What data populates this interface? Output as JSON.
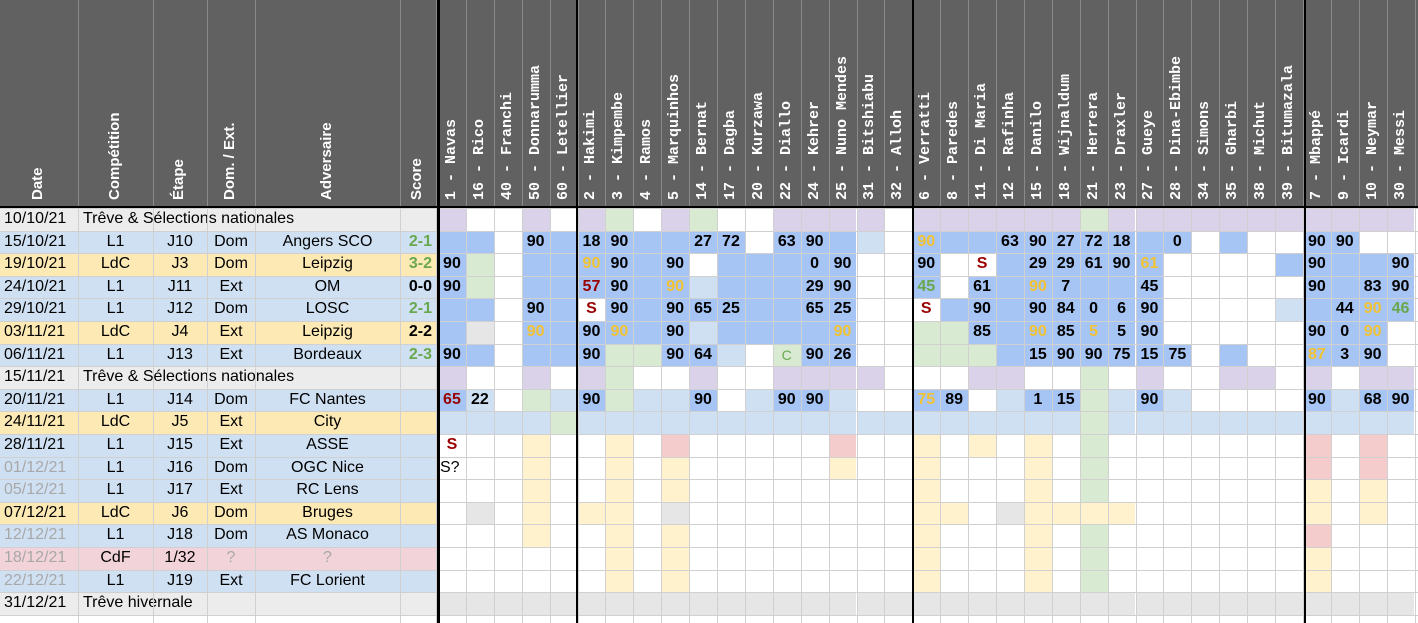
{
  "colors": {
    "header_bg": "#616161",
    "row_l1": "#cfe0f3",
    "row_ldc": "#fde9b4",
    "row_treve": "#ececec",
    "row_cdf": "#f3d3da",
    "played": "#a6c4f4",
    "light": "#cfe0f3",
    "green": "#d9ead3",
    "purple": "#d9d2e9",
    "grey": "#e6e6e6",
    "yellow": "#fff2cc",
    "pink": "#f4cccc",
    "text_green": "#6aa84f",
    "text_yellow": "#f1c232",
    "text_red": "#990000",
    "text_grey": "#a8a8a8"
  },
  "headers": [
    "Date",
    "Compétition",
    "Étape",
    "Dom. / Ext.",
    "Adversaire",
    "Score"
  ],
  "players": [
    "1 - Navas",
    "16 - Rico",
    "40 - Franchi",
    "50 - Donnarumma",
    "60 - Letellier",
    "2 - Hakimi",
    "3 - Kimpembe",
    "4 - Ramos",
    "5 - Marquinhos",
    "14 - Bernat",
    "17 - Dagba",
    "20 - Kurzawa",
    "22 - Diallo",
    "24 - Kehrer",
    "25 - Nuno Mendes",
    "31 - Bitshiabu",
    "32 - Alloh",
    "6 - Verratti",
    "8 - Paredes",
    "11 - Di Maria",
    "12 - Rafinha",
    "15 - Danilo",
    "18 - Wijnaldum",
    "21 - Herrera",
    "23 - Draxler",
    "27 - Gueye",
    "28 - Dina-Ebimbe",
    "34 - Simons",
    "35 - Gharbi",
    "38 - Michut",
    "39 - Bitumazala",
    "7 - Mbappé",
    "9 - Icardi",
    "10 - Neymar",
    "30 - Messi"
  ],
  "rows": [
    {
      "date": "10/10/21",
      "note": "Trêve & Sélections nationales",
      "kind": "treve"
    },
    {
      "date": "15/10/21",
      "comp": "L1",
      "etape": "J10",
      "dom": "Dom",
      "adv": "Angers SCO",
      "score": "2-1",
      "score_color": "green",
      "kind": "l1"
    },
    {
      "date": "19/10/21",
      "comp": "LdC",
      "etape": "J3",
      "dom": "Dom",
      "adv": "Leipzig",
      "score": "3-2",
      "score_color": "green",
      "kind": "ldc"
    },
    {
      "date": "24/10/21",
      "comp": "L1",
      "etape": "J11",
      "dom": "Ext",
      "adv": "OM",
      "score": "0-0",
      "score_color": "black",
      "kind": "l1"
    },
    {
      "date": "29/10/21",
      "comp": "L1",
      "etape": "J12",
      "dom": "Dom",
      "adv": "LOSC",
      "score": "2-1",
      "score_color": "green",
      "kind": "l1"
    },
    {
      "date": "03/11/21",
      "comp": "LdC",
      "etape": "J4",
      "dom": "Ext",
      "adv": "Leipzig",
      "score": "2-2",
      "score_color": "black",
      "kind": "ldc"
    },
    {
      "date": "06/11/21",
      "comp": "L1",
      "etape": "J13",
      "dom": "Ext",
      "adv": "Bordeaux",
      "score": "2-3",
      "score_color": "green",
      "kind": "l1"
    },
    {
      "date": "15/11/21",
      "note": "Trêve & Sélections nationales",
      "kind": "treve"
    },
    {
      "date": "20/11/21",
      "comp": "L1",
      "etape": "J14",
      "dom": "Dom",
      "adv": "FC Nantes",
      "score": "",
      "kind": "l1"
    },
    {
      "date": "24/11/21",
      "comp": "LdC",
      "etape": "J5",
      "dom": "Ext",
      "adv": "City",
      "score": "",
      "kind": "ldc"
    },
    {
      "date": "28/11/21",
      "comp": "L1",
      "etape": "J15",
      "dom": "Ext",
      "adv": "ASSE",
      "score": "",
      "kind": "l1"
    },
    {
      "date": "01/12/21",
      "comp": "L1",
      "etape": "J16",
      "dom": "Dom",
      "adv": "OGC Nice",
      "score": "",
      "kind": "l1",
      "date_grey": true
    },
    {
      "date": "05/12/21",
      "comp": "L1",
      "etape": "J17",
      "dom": "Ext",
      "adv": "RC Lens",
      "score": "",
      "kind": "l1",
      "date_grey": true
    },
    {
      "date": "07/12/21",
      "comp": "LdC",
      "etape": "J6",
      "dom": "Dom",
      "adv": "Bruges",
      "score": "",
      "kind": "ldc"
    },
    {
      "date": "12/12/21",
      "comp": "L1",
      "etape": "J18",
      "dom": "Dom",
      "adv": "AS Monaco",
      "score": "",
      "kind": "l1",
      "date_grey": true
    },
    {
      "date": "18/12/21",
      "comp": "CdF",
      "etape": "1/32",
      "dom": "?",
      "adv": "?",
      "score": "",
      "kind": "cdf",
      "date_grey": true,
      "dom_grey": true,
      "adv_grey": true
    },
    {
      "date": "22/12/21",
      "comp": "L1",
      "etape": "J19",
      "dom": "Ext",
      "adv": "FC Lorient",
      "score": "",
      "kind": "l1",
      "date_grey": true
    },
    {
      "date": "31/12/21",
      "note": "Trêve hivernale",
      "kind": "treve"
    }
  ],
  "cells": {
    "0": {
      "0": "purple",
      "3": "purple",
      "5": "purple",
      "6": "green",
      "8": "purple",
      "9": "green",
      "12": "purple",
      "13": "purple",
      "14": "purple",
      "15": "purple",
      "17": "purple",
      "18": "purple",
      "19": "purple",
      "20": "purple",
      "21": "purple",
      "22": "purple",
      "23": "green",
      "24": "purple",
      "25": "purple",
      "26": "purple",
      "27": "purple",
      "28": "purple",
      "29": "purple",
      "30": "purple",
      "31": "purple",
      "32": "purple",
      "33": "purple",
      "34": "purple"
    },
    "1": {
      "0": "played",
      "1": "played",
      "3": [
        "played",
        "90"
      ],
      "4": "played",
      "5": [
        "played",
        "18"
      ],
      "6": [
        "played",
        "90"
      ],
      "7": "played",
      "8": "played",
      "9": [
        "played",
        "27"
      ],
      "10": [
        "played",
        "72"
      ],
      "12": [
        "played",
        "63"
      ],
      "13": [
        "played",
        "90"
      ],
      "14": "played",
      "15": "light",
      "17": [
        "played",
        "90",
        "yellow"
      ],
      "18": "played",
      "19": "played",
      "20": [
        "played",
        "63"
      ],
      "21": [
        "played",
        "90"
      ],
      "22": [
        "played",
        "27"
      ],
      "23": [
        "played",
        "72"
      ],
      "24": [
        "played",
        "18"
      ],
      "25": "played",
      "26": [
        "played",
        "0"
      ],
      "28": "played",
      "31": [
        "played",
        "90"
      ],
      "32": [
        "played",
        "90"
      ]
    },
    "2": {
      "0": [
        "played",
        "90"
      ],
      "1": "green",
      "3": "played",
      "4": "played",
      "5": [
        "played",
        "90",
        "yellow"
      ],
      "6": [
        "played",
        "90"
      ],
      "7": "played",
      "8": [
        "played",
        "90"
      ],
      "10": "played",
      "11": "played",
      "12": "played",
      "13": [
        "played",
        "0"
      ],
      "14": [
        "played",
        "90"
      ],
      "17": [
        "played",
        "90"
      ],
      "19": [
        "white",
        "S",
        "red"
      ],
      "20": "played",
      "21": [
        "played",
        "29"
      ],
      "22": [
        "played",
        "29"
      ],
      "23": [
        "played",
        "61"
      ],
      "24": [
        "played",
        "90"
      ],
      "25": [
        "played",
        "61",
        "yellow"
      ],
      "30": "played",
      "31": [
        "played",
        "90"
      ],
      "32": "played",
      "33": "played",
      "34": [
        "played",
        "90"
      ]
    },
    "3": {
      "0": [
        "played",
        "90"
      ],
      "1": "green",
      "3": "played",
      "4": "played",
      "5": [
        "played",
        "57",
        "red"
      ],
      "6": [
        "played",
        "90"
      ],
      "7": "played",
      "8": [
        "played",
        "90",
        "yellow"
      ],
      "9": "light",
      "10": "played",
      "11": "played",
      "12": "played",
      "13": [
        "played",
        "29"
      ],
      "14": [
        "played",
        "90"
      ],
      "17": [
        "played",
        "45",
        "green"
      ],
      "19": [
        "played",
        "61"
      ],
      "20": "played",
      "21": [
        "played",
        "90",
        "yellow"
      ],
      "22": [
        "played",
        "7"
      ],
      "23": "played",
      "24": "played",
      "25": [
        "played",
        "45"
      ],
      "31": [
        "played",
        "90"
      ],
      "32": "played",
      "33": [
        "played",
        "83"
      ],
      "34": [
        "played",
        "90"
      ]
    },
    "4": {
      "0": "played",
      "1": "played",
      "3": [
        "played",
        "90"
      ],
      "4": "played",
      "5": [
        "white",
        "S",
        "red"
      ],
      "6": [
        "played",
        "90"
      ],
      "7": "played",
      "8": [
        "played",
        "90"
      ],
      "9": [
        "played",
        "65"
      ],
      "10": [
        "played",
        "25"
      ],
      "11": "played",
      "12": "played",
      "13": [
        "played",
        "65"
      ],
      "14": [
        "played",
        "25"
      ],
      "17": [
        "white",
        "S",
        "red"
      ],
      "18": "played",
      "19": [
        "played",
        "90"
      ],
      "20": "played",
      "21": [
        "played",
        "90"
      ],
      "22": [
        "played",
        "84"
      ],
      "23": [
        "played",
        "0"
      ],
      "24": [
        "played",
        "6"
      ],
      "25": [
        "played",
        "90"
      ],
      "30": "light",
      "31": "played",
      "32": [
        "played",
        "44"
      ],
      "33": [
        "played",
        "90",
        "yellow"
      ],
      "34": [
        "played",
        "46",
        "green"
      ]
    },
    "5": {
      "0": "played",
      "1": "grey",
      "3": [
        "played",
        "90",
        "yellow"
      ],
      "4": "played",
      "5": [
        "played",
        "90"
      ],
      "6": [
        "played",
        "90",
        "yellow"
      ],
      "7": "played",
      "8": [
        "played",
        "90"
      ],
      "9": "light",
      "10": "played",
      "11": "played",
      "12": "played",
      "13": "played",
      "14": [
        "played",
        "90",
        "yellow"
      ],
      "17": "green",
      "18": "green",
      "19": [
        "played",
        "85"
      ],
      "20": "played",
      "21": [
        "played",
        "90",
        "yellow"
      ],
      "22": [
        "played",
        "85"
      ],
      "23": [
        "played",
        "5",
        "yellow"
      ],
      "24": [
        "played",
        "5"
      ],
      "25": [
        "played",
        "90"
      ],
      "31": [
        "played",
        "90"
      ],
      "32": [
        "played",
        "0"
      ],
      "33": [
        "played",
        "90",
        "yellow"
      ]
    },
    "6": {
      "0": [
        "played",
        "90"
      ],
      "1": "played",
      "3": "played",
      "4": "played",
      "5": [
        "played",
        "90"
      ],
      "6": "green",
      "7": "green",
      "8": [
        "played",
        "90"
      ],
      "9": [
        "played",
        "64"
      ],
      "10": "light",
      "12": [
        "green",
        "C",
        "green"
      ],
      "13": [
        "played",
        "90"
      ],
      "14": [
        "played",
        "26"
      ],
      "17": "green",
      "18": "green",
      "19": "green",
      "20": "played",
      "21": [
        "played",
        "15"
      ],
      "22": [
        "played",
        "90"
      ],
      "23": [
        "played",
        "90"
      ],
      "24": [
        "played",
        "75"
      ],
      "25": [
        "played",
        "15"
      ],
      "26": [
        "played",
        "75"
      ],
      "28": "played",
      "31": [
        "played",
        "87",
        "yellow"
      ],
      "32": [
        "played",
        "3"
      ],
      "33": [
        "played",
        "90"
      ]
    },
    "7": {
      "0": "purple",
      "3": "purple",
      "5": "purple",
      "6": "green",
      "9": "purple",
      "12": "purple",
      "13": "purple",
      "14": "purple",
      "15": "purple",
      "19": "purple",
      "20": "purple",
      "23": "green",
      "25": "purple",
      "28": "purple",
      "29": "purple",
      "31": "purple",
      "33": "purple",
      "34": "purple"
    },
    "8": {
      "0": [
        "played",
        "65",
        "red"
      ],
      "1": [
        "light",
        "22"
      ],
      "3": "green",
      "4": "light",
      "5": [
        "played",
        "90"
      ],
      "6": "green",
      "7": "light",
      "8": "light",
      "9": [
        "played",
        "90"
      ],
      "11": "light",
      "12": [
        "played",
        "90"
      ],
      "13": [
        "played",
        "90"
      ],
      "14": "light",
      "17": [
        "played",
        "75",
        "yellow"
      ],
      "18": [
        "played",
        "89"
      ],
      "20": "light",
      "21": [
        "played",
        "1"
      ],
      "22": [
        "played",
        "15"
      ],
      "23": "green",
      "24": "light",
      "25": [
        "played",
        "90"
      ],
      "26": "light",
      "31": [
        "played",
        "90"
      ],
      "32": "light",
      "33": [
        "played",
        "68"
      ],
      "34": [
        "played",
        "90"
      ]
    },
    "9": {
      "0": "light",
      "1": "light",
      "2": "light",
      "3": "light",
      "4": "green",
      "5": "light",
      "6": "light",
      "7": "light",
      "8": "light",
      "9": "light",
      "10": "light",
      "11": "light",
      "12": "light",
      "13": "light",
      "14": "light",
      "15": "light",
      "16": "light",
      "17": "light",
      "18": "light",
      "19": "light",
      "20": "light",
      "21": "light",
      "22": "light",
      "23": "green",
      "24": "light",
      "25": "light",
      "26": "light",
      "27": "light",
      "28": "light",
      "29": "light",
      "30": "light",
      "31": "light",
      "32": "light",
      "33": "light",
      "34": "light"
    },
    "10": {
      "0": [
        "white",
        "S",
        "red"
      ],
      "3": "yellow",
      "6": "yellow",
      "8": "pink",
      "14": "pink",
      "17": "yellow",
      "19": "yellow",
      "21": "yellow",
      "23": "green",
      "31": "pink",
      "33": "pink"
    },
    "11": {
      "0": [
        "white",
        "S?",
        "black"
      ],
      "3": "yellow",
      "6": "yellow",
      "8": "yellow",
      "14": "yellow",
      "17": "yellow",
      "21": "yellow",
      "23": "green",
      "31": "pink",
      "33": "pink"
    },
    "12": {
      "3": "yellow",
      "6": "yellow",
      "8": "yellow",
      "17": "yellow",
      "21": "yellow",
      "23": "green",
      "31": "yellow",
      "33": "yellow"
    },
    "13": {
      "1": "grey",
      "3": "yellow",
      "5": "yellow",
      "6": "yellow",
      "8": "grey",
      "17": "yellow",
      "18": "yellow",
      "20": "grey",
      "21": "yellow",
      "22": "yellow",
      "23": "yellow",
      "24": "yellow",
      "31": "yellow",
      "33": "yellow"
    },
    "14": {
      "3": "yellow",
      "6": "yellow",
      "8": "yellow",
      "17": "yellow",
      "21": "yellow",
      "23": "green",
      "31": "pink"
    },
    "15": {
      "6": "yellow",
      "8": "yellow",
      "17": "yellow",
      "21": "yellow",
      "23": "green",
      "31": "yellow"
    },
    "16": {
      "6": "yellow",
      "8": "yellow",
      "17": "yellow",
      "21": "yellow",
      "23": "green",
      "31": "yellow"
    },
    "17": {
      "0": "grey",
      "1": "grey",
      "2": "grey",
      "3": "grey",
      "4": "grey",
      "5": "grey",
      "6": "grey",
      "7": "grey",
      "8": "grey",
      "9": "grey",
      "10": "grey",
      "11": "grey",
      "12": "grey",
      "13": "grey",
      "14": "grey",
      "15": "grey",
      "16": "grey",
      "17": "grey",
      "18": "grey",
      "19": "grey",
      "20": "grey",
      "21": "grey",
      "22": "grey",
      "23": "grey",
      "24": "grey",
      "25": "grey",
      "26": "grey",
      "27": "grey",
      "28": "grey",
      "29": "grey",
      "30": "grey",
      "31": "grey",
      "32": "grey",
      "33": "grey",
      "34": "grey"
    }
  }
}
